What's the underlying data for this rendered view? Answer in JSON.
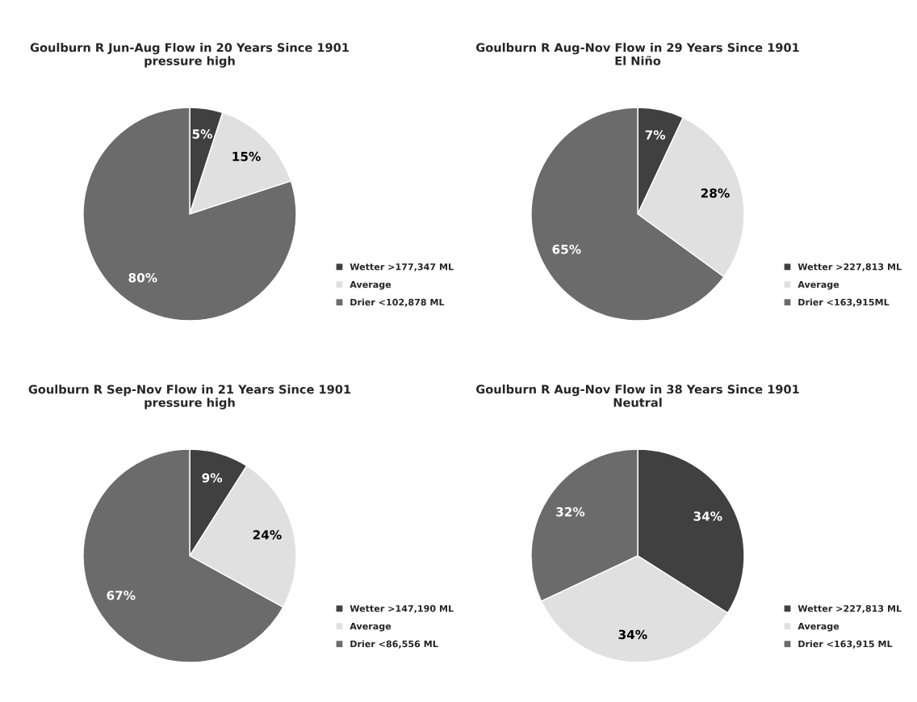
{
  "chart_data": [
    {
      "type": "pie",
      "title": "Goulburn R Jun-Aug Flow in 20 Years Since 1901\npressure high",
      "categories": [
        "Wetter >177,347 ML",
        "Average",
        "Drier <102,878 ML"
      ],
      "values": [
        5,
        15,
        80
      ],
      "value_labels": [
        "5%",
        "15%",
        "80%"
      ],
      "colors": [
        "#404040",
        "#e0e0e0",
        "#6b6b6b"
      ],
      "legend": "right"
    },
    {
      "type": "pie",
      "title": "Goulburn R Aug-Nov Flow in 29 Years Since 1901\nEl Niño",
      "categories": [
        "Wetter >227,813 ML",
        "Average",
        "Drier <163,915ML"
      ],
      "values": [
        7,
        28,
        65
      ],
      "value_labels": [
        "7%",
        "28%",
        "65%"
      ],
      "colors": [
        "#404040",
        "#e0e0e0",
        "#6b6b6b"
      ],
      "legend": "right"
    },
    {
      "type": "pie",
      "title": "Goulburn R Sep-Nov Flow in 21 Years Since 1901\npressure high",
      "categories": [
        "Wetter >147,190 ML",
        "Average",
        "Drier <86,556 ML"
      ],
      "values": [
        9,
        24,
        67
      ],
      "value_labels": [
        "9%",
        "24%",
        "67%"
      ],
      "colors": [
        "#404040",
        "#e0e0e0",
        "#6b6b6b"
      ],
      "legend": "right"
    },
    {
      "type": "pie",
      "title": "Goulburn R Aug-Nov Flow in 38 Years Since 1901\nNeutral",
      "categories": [
        "Wetter >227,813 ML",
        "Average",
        "Drier <163,915 ML"
      ],
      "values": [
        34,
        34,
        32
      ],
      "value_labels": [
        "34%",
        "34%",
        "32%"
      ],
      "colors": [
        "#404040",
        "#e0e0e0",
        "#6b6b6b"
      ],
      "legend": "right"
    }
  ]
}
